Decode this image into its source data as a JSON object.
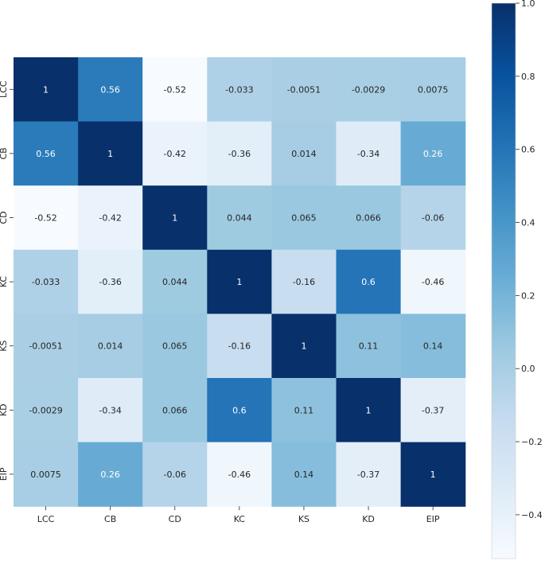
{
  "chart_data": {
    "type": "heatmap",
    "title": "",
    "row_labels": [
      "LCC",
      "CB",
      "CD",
      "KC",
      "KS",
      "KD",
      "EIP"
    ],
    "col_labels": [
      "LCC",
      "CB",
      "CD",
      "KC",
      "KS",
      "KD",
      "EIP"
    ],
    "values": [
      [
        1,
        0.56,
        -0.52,
        -0.033,
        -0.0051,
        -0.0029,
        0.0075
      ],
      [
        0.56,
        1,
        -0.42,
        -0.36,
        0.014,
        -0.34,
        0.26
      ],
      [
        -0.52,
        -0.42,
        1,
        0.044,
        0.065,
        0.066,
        -0.06
      ],
      [
        -0.033,
        -0.36,
        0.044,
        1,
        -0.16,
        0.6,
        -0.46
      ],
      [
        -0.0051,
        0.014,
        0.065,
        -0.16,
        1,
        0.11,
        0.14
      ],
      [
        -0.0029,
        -0.34,
        0.066,
        0.6,
        0.11,
        1,
        -0.37
      ],
      [
        0.0075,
        0.26,
        -0.06,
        -0.46,
        0.14,
        -0.37,
        1
      ]
    ],
    "annotations": [
      [
        "1",
        "0.56",
        "-0.52",
        "-0.033",
        "-0.0051",
        "-0.0029",
        "0.0075"
      ],
      [
        "0.56",
        "1",
        "-0.42",
        "-0.36",
        "0.014",
        "-0.34",
        "0.26"
      ],
      [
        "-0.52",
        "-0.42",
        "1",
        "0.044",
        "0.065",
        "0.066",
        "-0.06"
      ],
      [
        "-0.033",
        "-0.36",
        "0.044",
        "1",
        "-0.16",
        "0.6",
        "-0.46"
      ],
      [
        "-0.0051",
        "0.014",
        "0.065",
        "-0.16",
        "1",
        "0.11",
        "0.14"
      ],
      [
        "-0.0029",
        "-0.34",
        "0.066",
        "0.6",
        "0.11",
        "1",
        "-0.37"
      ],
      [
        "0.0075",
        "0.26",
        "-0.06",
        "-0.46",
        "0.14",
        "-0.37",
        "1"
      ]
    ],
    "colormap": "Blues",
    "vmin": -0.52,
    "vmax": 1.0,
    "colorbar_ticks": [
      1.0,
      0.8,
      0.6,
      0.4,
      0.2,
      0.0,
      -0.2,
      -0.4
    ],
    "colorbar_tick_labels": [
      "1.0",
      "0.8",
      "0.6",
      "0.4",
      "0.2",
      "0.0",
      "−0.2",
      "−0.4"
    ]
  }
}
